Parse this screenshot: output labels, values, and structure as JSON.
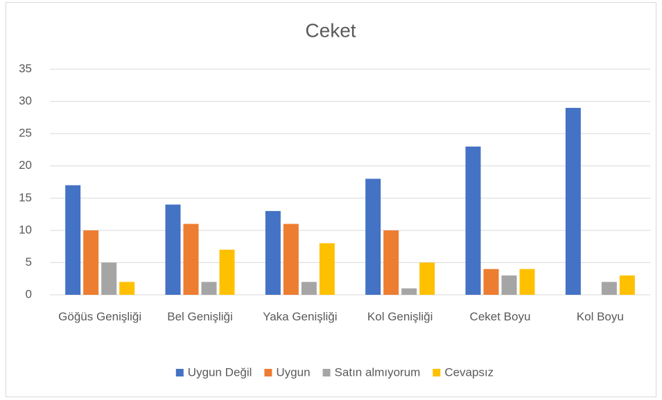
{
  "chart_data": {
    "type": "bar",
    "title": "Ceket",
    "categories": [
      "Göğüs Genişliği",
      "Bel Genişliği",
      "Yaka Genişliği",
      "Kol Genişliği",
      "Ceket Boyu",
      "Kol Boyu"
    ],
    "series": [
      {
        "name": "Uygun Değil",
        "color": "#4472c4",
        "values": [
          17,
          14,
          13,
          18,
          23,
          29
        ]
      },
      {
        "name": "Uygun",
        "color": "#ed7d31",
        "values": [
          10,
          11,
          11,
          10,
          4,
          0
        ]
      },
      {
        "name": "Satın almıyorum",
        "color": "#a5a5a5",
        "values": [
          5,
          2,
          2,
          1,
          3,
          2
        ]
      },
      {
        "name": "Cevapsız",
        "color": "#ffc000",
        "values": [
          2,
          7,
          8,
          5,
          4,
          3
        ]
      }
    ],
    "ylim": [
      0,
      35
    ],
    "yticks": [
      0,
      5,
      10,
      15,
      20,
      25,
      30,
      35
    ],
    "grid": true,
    "legend": "bottom"
  }
}
